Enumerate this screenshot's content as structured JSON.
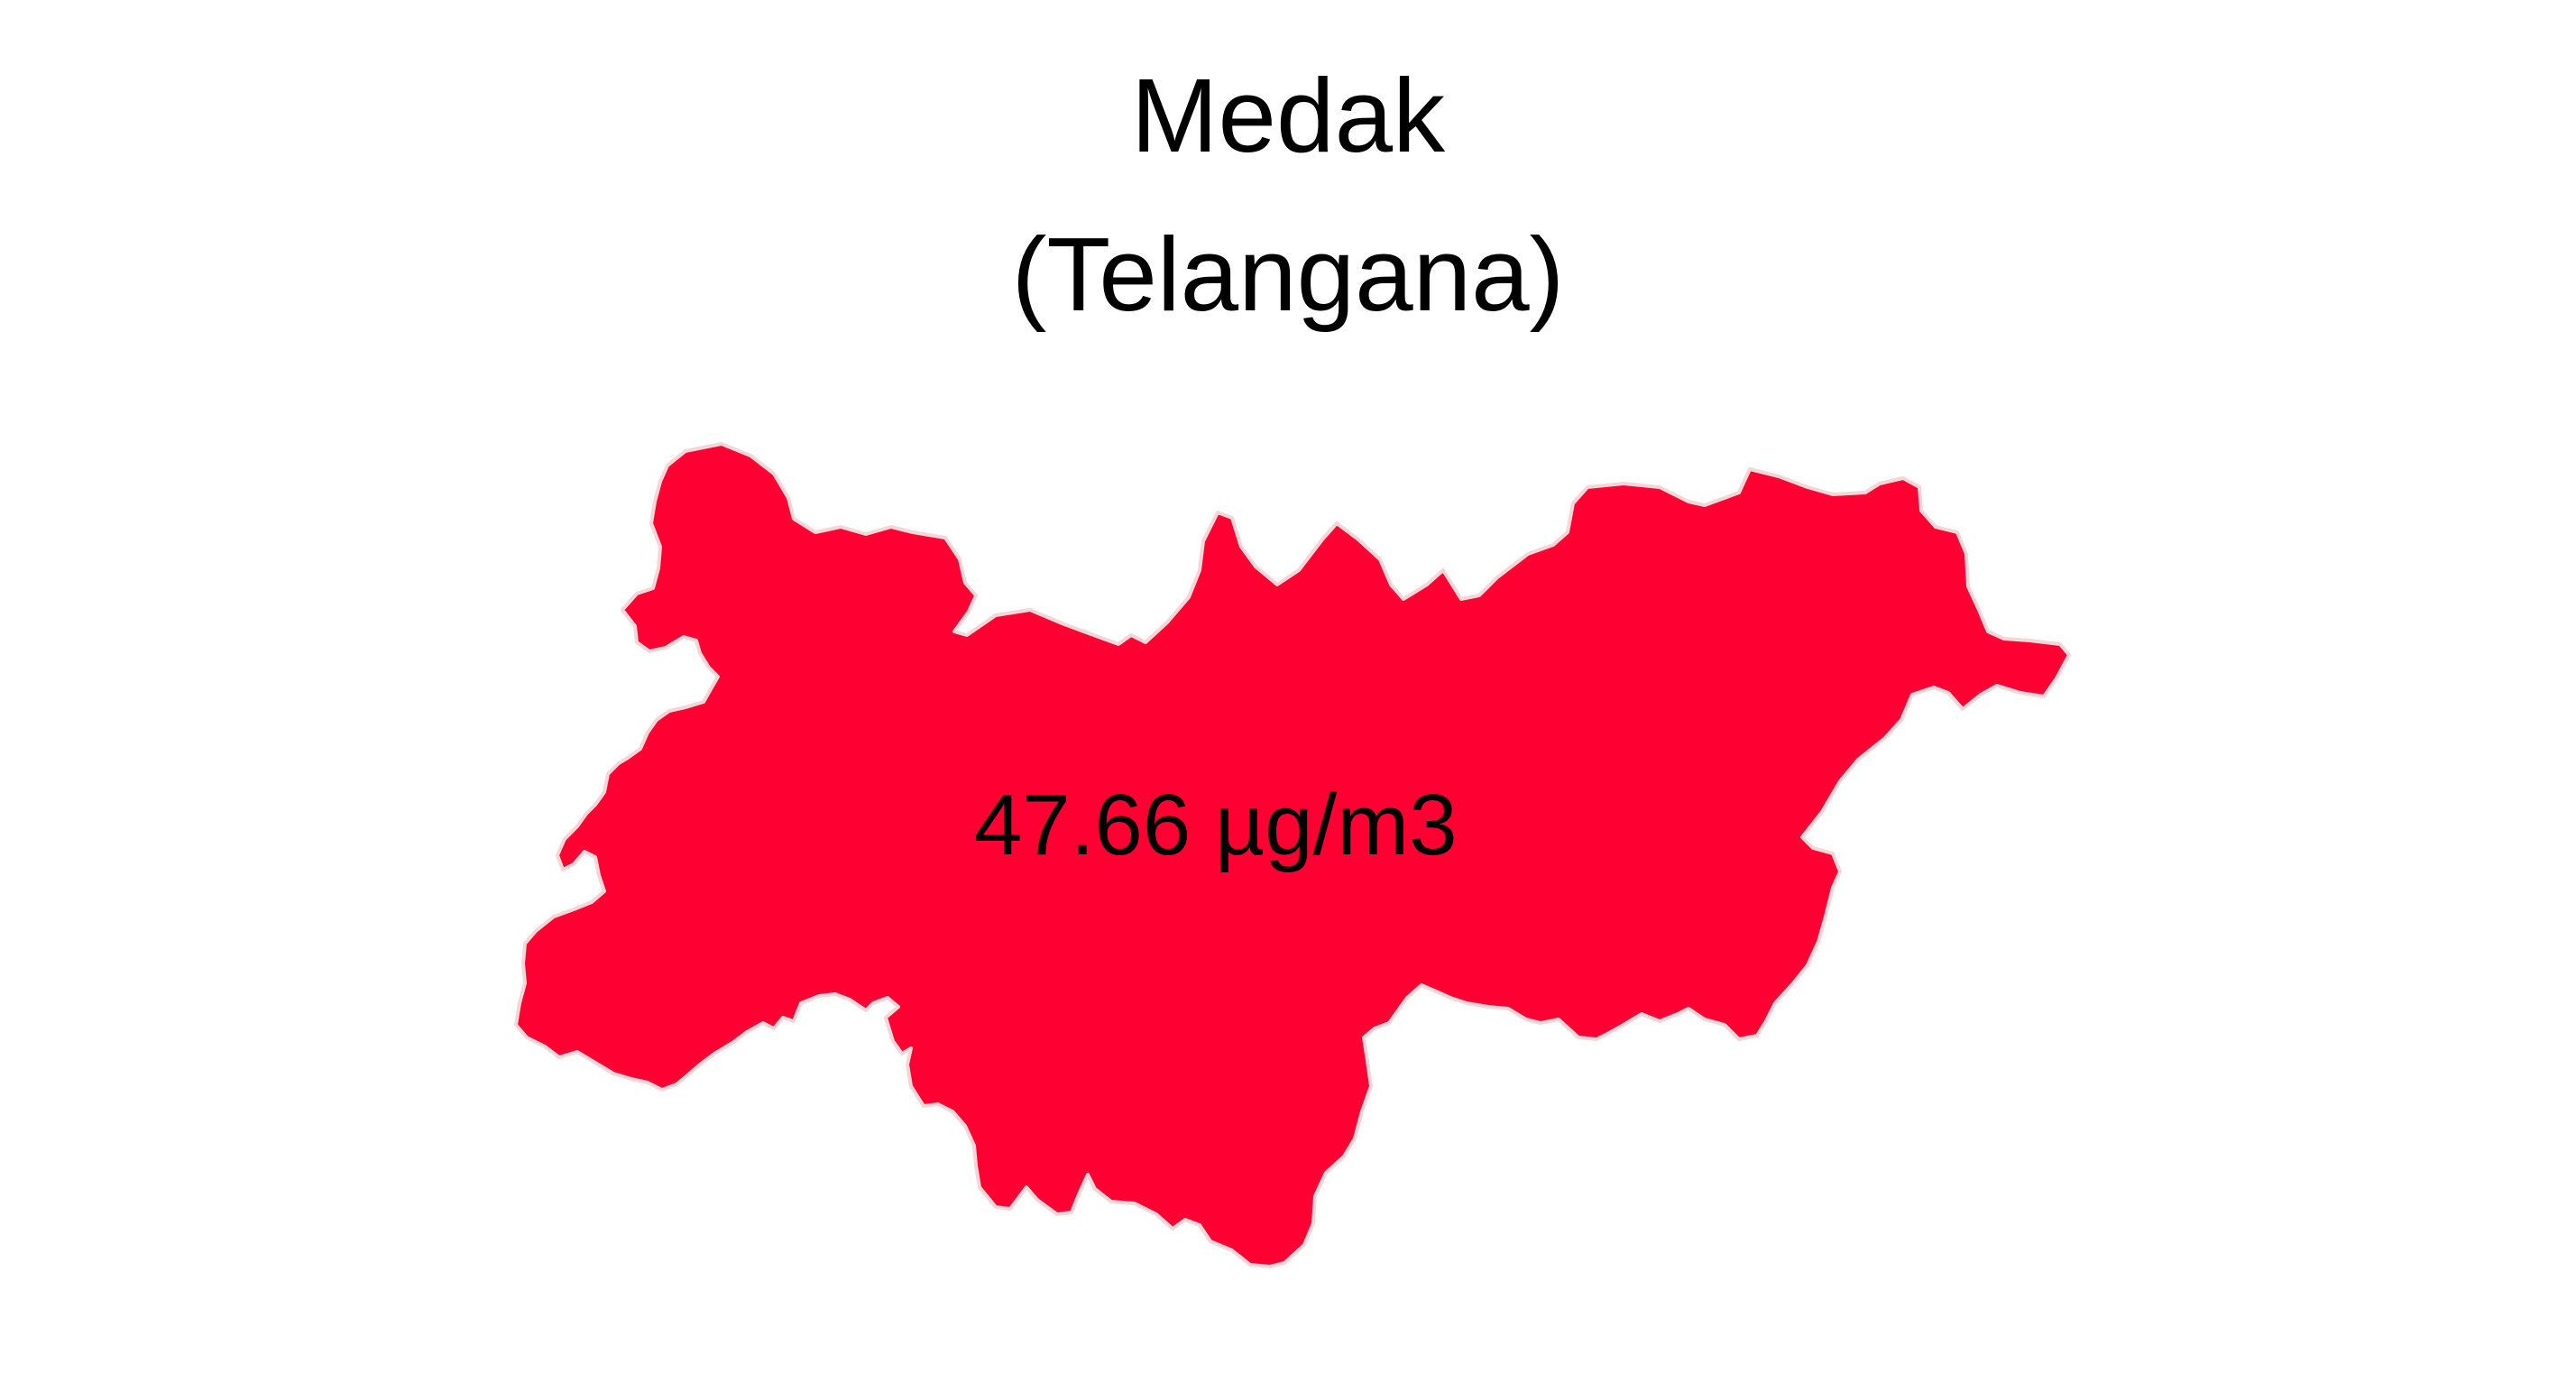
{
  "map": {
    "title": "Medak",
    "subtitle": "(Telangana)",
    "region_name": "Medak",
    "state": "Telangana",
    "value_label": "47.66 µg/m3",
    "value": 47.66,
    "unit": "µg/m3",
    "fill_color": "#ff0033",
    "border_color": "#f3d6d8"
  }
}
